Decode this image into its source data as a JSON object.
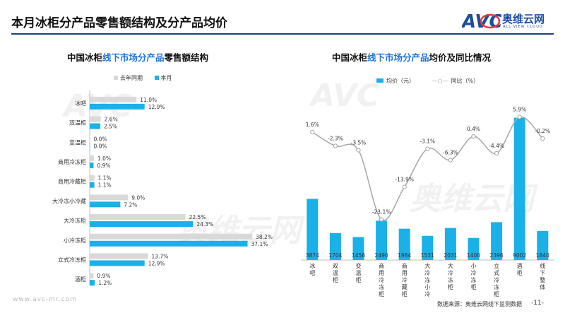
{
  "header": {
    "title": "本月冰柜分产品零售额结构及分产品均价",
    "logo_mark": "AVC",
    "logo_cn": "奥维云网",
    "logo_en": "ALL VIEW CLOUD"
  },
  "colors": {
    "blue": "#1ab0e8",
    "gray": "#d9d9d9",
    "line": "#a6a6a6",
    "title_rule": "#1f3f7a",
    "highlight": "#1a73d9"
  },
  "watermark": {
    "text": "奥维云网",
    "sub": "ALL VIEW CLOUD"
  },
  "left_chart": {
    "title_pre": "中国冰柜",
    "title_hl": "线下市场分产品",
    "title_post": "零售额结构"
  },
  "right_chart": {
    "title_pre": "中国冰柜",
    "title_hl": "线下市场分产品",
    "title_post": "均价及同比情况"
  },
  "chart_data": [
    {
      "type": "bar",
      "orientation": "horizontal",
      "categories": [
        "冰吧",
        "双温柜",
        "变温柜",
        "商用冷冻柜",
        "商用冷藏柜",
        "大冷冻小冷藏",
        "大冷冻柜",
        "小冷冻柜",
        "立式冷冻柜",
        "酒柜"
      ],
      "series": [
        {
          "name": "去年同期",
          "color": "#d9d9d9",
          "values": [
            11.0,
            2.6,
            0.0,
            1.0,
            1.1,
            9.0,
            22.5,
            38.2,
            13.7,
            0.9
          ]
        },
        {
          "name": "本月",
          "color": "#1ab0e8",
          "values": [
            12.9,
            2.5,
            0.0,
            0.9,
            1.1,
            7.2,
            24.3,
            37.1,
            12.9,
            1.2
          ]
        }
      ],
      "value_labels": {
        "去年同期": [
          "11.0%",
          "2.6%",
          "0.0%",
          "1.0%",
          "1.1%",
          "9.0%",
          "22.5%",
          "38.2%",
          "13.7%",
          "0.9%"
        ],
        "本月": [
          "12.9%",
          "2.5%",
          "0.0%",
          "0.9%",
          "1.1%",
          "7.2%",
          "24.3%",
          "37.1%",
          "12.9%",
          "1.2%"
        ]
      },
      "xlim": [
        0,
        40
      ],
      "legend": "top-left"
    },
    {
      "type": "bar",
      "categories": [
        "冰吧",
        "双温柜",
        "变温柜",
        "商用冷冻柜",
        "商用冷藏柜",
        "大冷冻小冷藏",
        "大冷冻柜",
        "小冷冻柜",
        "立式冷冻柜",
        "酒柜",
        "线下整体"
      ],
      "series": [
        {
          "name": "均价（元）",
          "type": "bar",
          "axis": "left",
          "color": "#1ab0e8",
          "values": [
            3874,
            1704,
            1456,
            2490,
            1984,
            1531,
            2031,
            1400,
            2396,
            9002,
            1840
          ]
        },
        {
          "name": "同比（%）",
          "type": "line",
          "axis": "right",
          "color": "#a6a6a6",
          "values": [
            1.6,
            -2.3,
            -3.5,
            -23.1,
            -13.9,
            -3.1,
            -6.3,
            0.4,
            -4.4,
            5.9,
            -0.2
          ],
          "labels": [
            "1.6%",
            "-2.3%",
            "-3.5%",
            "-23.1%",
            "-13.9%",
            "-3.1%",
            "-6.3%",
            "0.4%",
            "-4.4%",
            "5.9%",
            "-0.2%"
          ]
        }
      ],
      "ylim_left": [
        0,
        9300
      ],
      "ylim_right": [
        -25,
        7
      ],
      "legend": "top-left"
    }
  ],
  "footer": {
    "url": "www.avc-mr.com",
    "source": "数据来源：奥维云网线下监测数据",
    "page": "-11-"
  }
}
